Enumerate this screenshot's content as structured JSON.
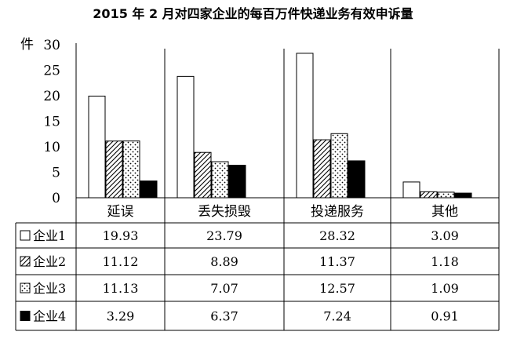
{
  "chart_data": {
    "type": "bar",
    "title": "2015 年 2 月对四家企业的每百万件快递业务有效申诉量",
    "ylabel": "件",
    "ylim": [
      0,
      30
    ],
    "yticks": [
      0,
      5,
      10,
      15,
      20,
      25,
      30
    ],
    "categories": [
      "延误",
      "丢失损毁",
      "投递服务",
      "其他"
    ],
    "series": [
      {
        "name": "企业1",
        "pattern": "hollow",
        "values": [
          19.93,
          23.79,
          28.32,
          3.09
        ],
        "labels": [
          "19.93",
          "23.79",
          "28.32",
          "3.09"
        ]
      },
      {
        "name": "企业2",
        "pattern": "hatched",
        "values": [
          11.12,
          8.89,
          11.37,
          1.18
        ],
        "labels": [
          "11.12",
          "8.89",
          "11.37",
          "1.18"
        ]
      },
      {
        "name": "企业3",
        "pattern": "dotted",
        "values": [
          11.13,
          7.07,
          12.57,
          1.09
        ],
        "labels": [
          "11.13",
          "7.07",
          "12.57",
          "1.09"
        ]
      },
      {
        "name": "企业4",
        "pattern": "solid",
        "values": [
          3.29,
          6.37,
          7.24,
          0.91
        ],
        "labels": [
          "3.29",
          "6.37",
          "7.24",
          "0.91"
        ]
      }
    ],
    "colors": {
      "bar_fill": "#ffffff",
      "solid_fill": "#000000",
      "line": "#000000"
    }
  }
}
